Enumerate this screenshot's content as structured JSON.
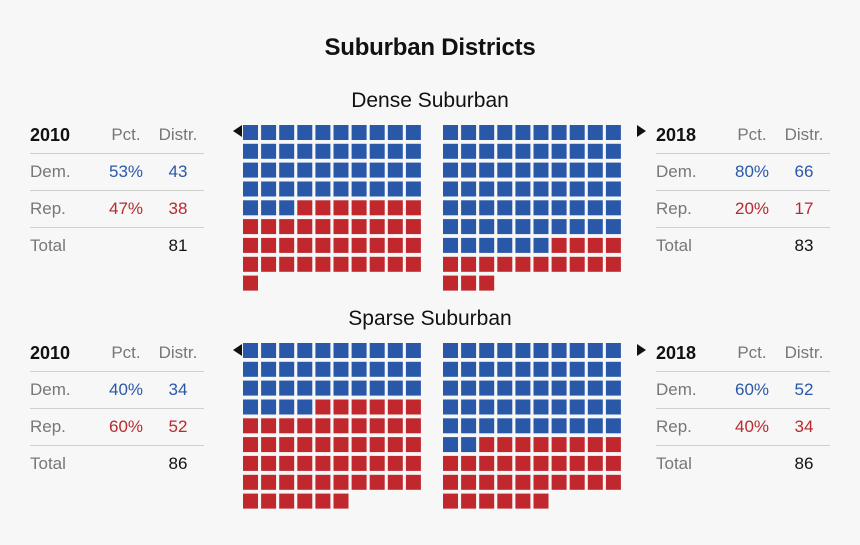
{
  "title": "Suburban Districts",
  "colors": {
    "dem": "#2a58a8",
    "rep": "#c0282e",
    "background": "#f7f7f7"
  },
  "table_headers": {
    "pct": "Pct.",
    "distr": "Distr."
  },
  "row_labels": {
    "dem": "Dem.",
    "rep": "Rep.",
    "total": "Total"
  },
  "chart_data": [
    {
      "type": "waffle",
      "title": "Dense Suburban",
      "years": [
        {
          "year": "2010",
          "dem_pct": "53%",
          "dem_distr": 43,
          "rep_pct": "47%",
          "rep_distr": 38,
          "total": 81
        },
        {
          "year": "2018",
          "dem_pct": "80%",
          "dem_distr": 66,
          "rep_pct": "20%",
          "rep_distr": 17,
          "total": 83
        }
      ]
    },
    {
      "type": "waffle",
      "title": "Sparse Suburban",
      "years": [
        {
          "year": "2010",
          "dem_pct": "40%",
          "dem_distr": 34,
          "rep_pct": "60%",
          "rep_distr": 52,
          "total": 86
        },
        {
          "year": "2018",
          "dem_pct": "60%",
          "dem_distr": 52,
          "rep_pct": "40%",
          "rep_distr": 34,
          "total": 86
        }
      ]
    }
  ]
}
